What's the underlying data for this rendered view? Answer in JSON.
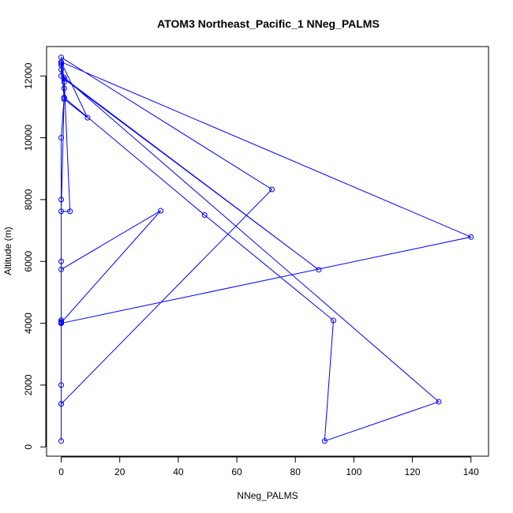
{
  "chart_data": {
    "type": "line",
    "title": "ATOM3 Northeast_Pacific_1 NNeg_PALMS",
    "xlabel": "NNeg_PALMS",
    "ylabel": "Altitude (m)",
    "xlim": [
      -5,
      146
    ],
    "ylim": [
      -300,
      12950
    ],
    "x_ticks": [
      0,
      20,
      40,
      60,
      80,
      100,
      120,
      140
    ],
    "y_ticks": [
      0,
      2000,
      4000,
      6000,
      8000,
      10000,
      12000
    ],
    "grid": false,
    "legend": "none",
    "color": "#0000ff",
    "markers": "open-circle",
    "series": [
      {
        "x": [
          0,
          0,
          0,
          0,
          0,
          0,
          0,
          1,
          1,
          1,
          0,
          0,
          0,
          9,
          1,
          0,
          72,
          0,
          0,
          34,
          0,
          0,
          0,
          0,
          140,
          0,
          0,
          88,
          1,
          3,
          0,
          1,
          49,
          93,
          90,
          129,
          1,
          0
        ],
        "y": [
          190,
          1390,
          2000,
          4000,
          6000,
          8000,
          10000,
          11300,
          11600,
          11800,
          12200,
          12350,
          12450,
          10650,
          11250,
          12600,
          8330,
          1390,
          4020,
          7640,
          5740,
          4100,
          4050,
          4000,
          6790,
          12450,
          12000,
          5730,
          11900,
          7620,
          7620,
          11300,
          7500,
          4090,
          190,
          1460,
          11950,
          12400
        ]
      }
    ]
  }
}
